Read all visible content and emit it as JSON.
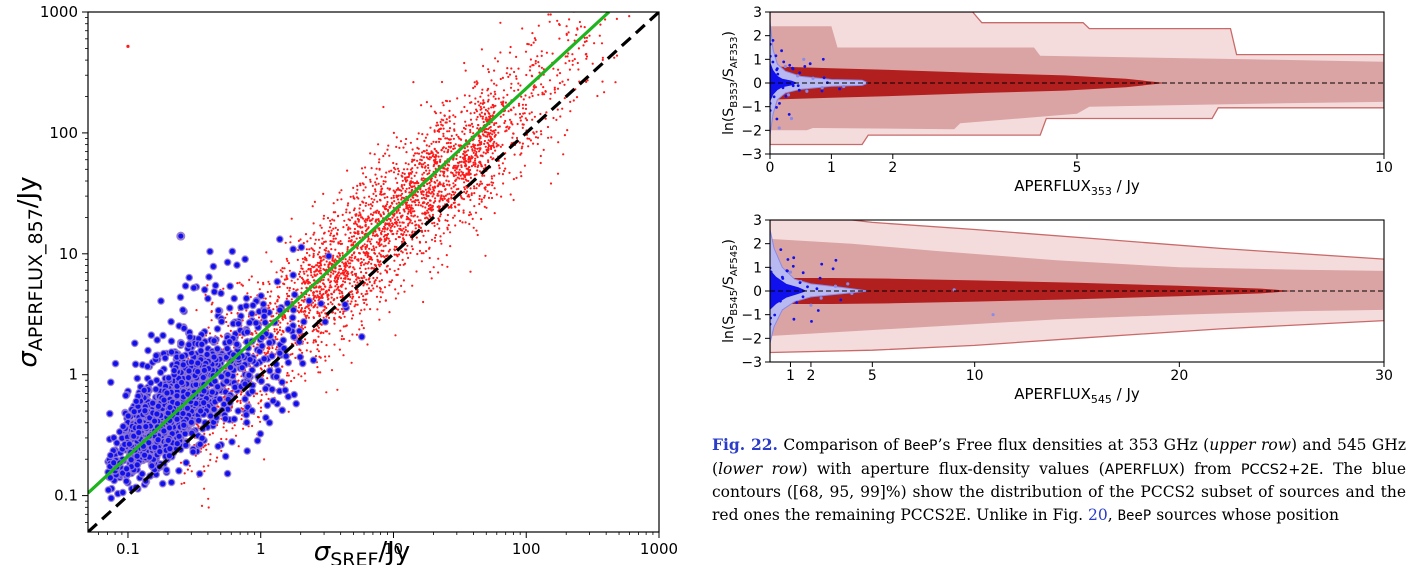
{
  "colors": {
    "pccs2": "#1010ee",
    "pccs2_halo": "#9a7fd0",
    "pccs2e": "#ff1a1a",
    "fit_line": "#1db41d",
    "identity_line": "#000000",
    "contour_dark": "#b21f1f",
    "contour_mid": "#dba4a4",
    "contour_light": "#f5dcdc",
    "contour_edge": "#c86a6a",
    "blue_contour": "#8a8aea"
  },
  "chart_data": [
    {
      "id": "scatter",
      "type": "scatter",
      "xlabel_main": "σ",
      "xlabel_sub": "SREF",
      "xlabel_tail": "/Jy",
      "ylabel_main": "σ",
      "ylabel_sub": "APERFLUX_857",
      "ylabel_tail": "/Jy",
      "xscale": "log",
      "yscale": "log",
      "xlim": [
        0.05,
        1000
      ],
      "ylim": [
        0.05,
        1000
      ],
      "xticks": [
        0.1,
        1,
        10,
        100,
        1000
      ],
      "xtick_labels": [
        "0.1",
        "1",
        "10",
        "100",
        "1000"
      ],
      "yticks": [
        0.1,
        1,
        10,
        100,
        1000
      ],
      "ytick_labels": [
        "0.1",
        "1",
        "10",
        "100",
        "1000"
      ],
      "series": [
        {
          "role": "pccs2e",
          "color": "#ff1a1a",
          "approx_points": 2600,
          "x_range": [
            0.25,
            700
          ],
          "log_slope": 1.0,
          "log_offset": 0.25,
          "log_scatter": 0.33
        },
        {
          "role": "pccs2",
          "color": "#1010ee",
          "approx_points": 1500,
          "center": [
            0.15,
            0.35
          ],
          "x_range": [
            0.07,
            8
          ]
        }
      ],
      "lines": [
        {
          "role": "fit",
          "color": "#1db41d",
          "points": [
            [
              0.05,
              0.105
            ],
            [
              420,
              1000
            ]
          ],
          "style": "solid"
        },
        {
          "role": "identity",
          "color": "#000000",
          "points": [
            [
              0.05,
              0.05
            ],
            [
              1000,
              1000
            ]
          ],
          "style": "dashed"
        }
      ],
      "outliers": [
        [
          0.1,
          520
        ],
        [
          0.25,
          14
        ]
      ]
    },
    {
      "id": "panel-353",
      "type": "area",
      "ylabel": "ln(S",
      "ylabel_sub1": "B353",
      "ylabel_mid": "/S",
      "ylabel_sub2": "AF353",
      "ylabel_end": ")",
      "xlabel": "APERFLUX",
      "xlabel_sub": "353",
      "xlabel_tail": " / Jy",
      "xlim": [
        0,
        10
      ],
      "ylim": [
        -3,
        3
      ],
      "xticks": [
        0,
        1,
        2,
        5,
        10
      ],
      "xtick_labels": [
        "0",
        "1",
        "2",
        "5",
        "10"
      ],
      "yticks": [
        -3,
        -2,
        -1,
        0,
        1,
        2,
        3
      ],
      "ytick_labels": [
        "−3",
        "−2",
        "−1",
        "0",
        "1",
        "2",
        "3"
      ],
      "bands": {
        "light": {
          "upper": [
            [
              0,
              3
            ],
            [
              1.5,
              3
            ],
            [
              3.3,
              3
            ],
            [
              3.45,
              2.55
            ],
            [
              3.45,
              2.55
            ],
            [
              5.1,
              2.55
            ],
            [
              5.2,
              2.3
            ],
            [
              7.5,
              2.3
            ],
            [
              7.6,
              1.2
            ],
            [
              10,
              1.2
            ]
          ],
          "lower": [
            [
              0,
              -2.6
            ],
            [
              1.5,
              -2.6
            ],
            [
              1.6,
              -2.2
            ],
            [
              4.4,
              -2.2
            ],
            [
              4.5,
              -1.5
            ],
            [
              7.2,
              -1.5
            ],
            [
              7.3,
              -1.05
            ],
            [
              10,
              -1.05
            ]
          ]
        },
        "mid": {
          "upper": [
            [
              0,
              2.4
            ],
            [
              1.0,
              2.4
            ],
            [
              1.1,
              1.5
            ],
            [
              4.3,
              1.5
            ],
            [
              4.4,
              1.15
            ],
            [
              7.8,
              1.0
            ],
            [
              10,
              0.9
            ]
          ],
          "lower": [
            [
              0,
              -2.0
            ],
            [
              0.6,
              -2.0
            ],
            [
              0.7,
              -1.9
            ],
            [
              3.0,
              -1.95
            ],
            [
              3.1,
              -1.7
            ],
            [
              5.0,
              -1.3
            ],
            [
              5.2,
              -1.0
            ],
            [
              8.5,
              -0.85
            ],
            [
              10,
              -0.8
            ]
          ]
        },
        "dark": {
          "upper": [
            [
              0,
              0.7
            ],
            [
              1.0,
              0.62
            ],
            [
              2.0,
              0.55
            ],
            [
              3.5,
              0.42
            ],
            [
              4.8,
              0.32
            ],
            [
              5.8,
              0.18
            ],
            [
              6.3,
              0.04
            ],
            [
              6.45,
              0
            ]
          ],
          "lower": [
            [
              0,
              -0.7
            ],
            [
              1.0,
              -0.62
            ],
            [
              2.0,
              -0.55
            ],
            [
              3.5,
              -0.42
            ],
            [
              4.8,
              -0.32
            ],
            [
              5.8,
              -0.18
            ],
            [
              6.3,
              -0.04
            ],
            [
              6.45,
              0
            ]
          ]
        },
        "blue_outer": {
          "upper": [
            [
              0,
              2.6
            ],
            [
              0.05,
              1.4
            ],
            [
              0.12,
              0.8
            ],
            [
              0.25,
              0.5
            ],
            [
              0.5,
              0.28
            ],
            [
              1.0,
              0.15
            ],
            [
              1.5,
              0.12
            ],
            [
              1.6,
              0
            ]
          ],
          "lower": [
            [
              0,
              -2.2
            ],
            [
              0.05,
              -1.3
            ],
            [
              0.12,
              -0.7
            ],
            [
              0.25,
              -0.42
            ],
            [
              0.5,
              -0.26
            ],
            [
              1.0,
              -0.14
            ],
            [
              1.5,
              -0.1
            ],
            [
              1.6,
              0
            ]
          ]
        },
        "blue_core": {
          "upper": [
            [
              0,
              0.9
            ],
            [
              0.05,
              0.55
            ],
            [
              0.12,
              0.3
            ],
            [
              0.2,
              0.18
            ],
            [
              0.35,
              0.1
            ],
            [
              0.45,
              0
            ]
          ],
          "lower": [
            [
              0,
              -0.8
            ],
            [
              0.05,
              -0.5
            ],
            [
              0.12,
              -0.3
            ],
            [
              0.2,
              -0.18
            ],
            [
              0.35,
              -0.1
            ],
            [
              0.45,
              0
            ]
          ]
        }
      },
      "scatter_points": [
        [
          0.3,
          -0.5
        ],
        [
          0.45,
          0.3
        ],
        [
          0.6,
          -0.35
        ],
        [
          0.7,
          0.2
        ],
        [
          0.85,
          -0.2
        ],
        [
          0.35,
          -1.5
        ],
        [
          0.55,
          1.0
        ],
        [
          1.2,
          -0.15
        ],
        [
          0.25,
          0.7
        ],
        [
          0.15,
          -1.9
        ]
      ]
    },
    {
      "id": "panel-545",
      "type": "area",
      "ylabel": "ln(S",
      "ylabel_sub1": "B545",
      "ylabel_mid": "/S",
      "ylabel_sub2": "AF545",
      "ylabel_end": ")",
      "xlabel": "APERFLUX",
      "xlabel_sub": "545",
      "xlabel_tail": " / Jy",
      "xlim": [
        0,
        30
      ],
      "ylim": [
        -3,
        3
      ],
      "xticks": [
        1,
        2,
        5,
        10,
        20,
        30
      ],
      "xtick_labels": [
        "1",
        "2",
        "5",
        "10",
        "20",
        "30"
      ],
      "yticks": [
        -3,
        -2,
        -1,
        0,
        1,
        2,
        3
      ],
      "ytick_labels": [
        "−3",
        "−2",
        "−1",
        "0",
        "1",
        "2",
        "3"
      ],
      "bands": {
        "light": {
          "upper": [
            [
              0,
              3
            ],
            [
              4,
              3
            ],
            [
              5,
              2.9
            ],
            [
              10,
              2.6
            ],
            [
              16,
              2.2
            ],
            [
              22,
              1.8
            ],
            [
              30,
              1.35
            ]
          ],
          "lower": [
            [
              0,
              -2.6
            ],
            [
              5,
              -2.5
            ],
            [
              10,
              -2.3
            ],
            [
              15,
              -2.0
            ],
            [
              22,
              -1.6
            ],
            [
              30,
              -1.25
            ]
          ]
        },
        "mid": {
          "upper": [
            [
              0,
              2.2
            ],
            [
              4,
              2.0
            ],
            [
              8,
              1.7
            ],
            [
              14,
              1.3
            ],
            [
              20,
              1.0
            ],
            [
              26,
              0.9
            ],
            [
              30,
              0.85
            ]
          ],
          "lower": [
            [
              0,
              -1.9
            ],
            [
              4,
              -1.7
            ],
            [
              8,
              -1.5
            ],
            [
              14,
              -1.2
            ],
            [
              20,
              -1.0
            ],
            [
              26,
              -0.85
            ],
            [
              30,
              -0.8
            ]
          ]
        },
        "dark": {
          "upper": [
            [
              0,
              0.55
            ],
            [
              3,
              0.55
            ],
            [
              6,
              0.52
            ],
            [
              10,
              0.45
            ],
            [
              15,
              0.35
            ],
            [
              20,
              0.22
            ],
            [
              24,
              0.1
            ],
            [
              25.5,
              0
            ]
          ],
          "lower": [
            [
              0,
              -0.55
            ],
            [
              3,
              -0.55
            ],
            [
              6,
              -0.52
            ],
            [
              10,
              -0.45
            ],
            [
              15,
              -0.35
            ],
            [
              20,
              -0.22
            ],
            [
              24,
              -0.1
            ],
            [
              25.5,
              0
            ]
          ]
        },
        "blue_outer": {
          "upper": [
            [
              0,
              2.6
            ],
            [
              0.2,
              1.8
            ],
            [
              0.6,
              1.0
            ],
            [
              1.2,
              0.5
            ],
            [
              2.0,
              0.3
            ],
            [
              3.5,
              0.15
            ],
            [
              4.8,
              0
            ]
          ],
          "lower": [
            [
              0,
              -2.2
            ],
            [
              0.2,
              -1.5
            ],
            [
              0.6,
              -0.8
            ],
            [
              1.2,
              -0.45
            ],
            [
              2.0,
              -0.25
            ],
            [
              3.5,
              -0.12
            ],
            [
              4.8,
              0
            ]
          ]
        },
        "blue_core": {
          "upper": [
            [
              0,
              0.9
            ],
            [
              0.3,
              0.6
            ],
            [
              0.8,
              0.3
            ],
            [
              1.4,
              0.15
            ],
            [
              1.8,
              0
            ]
          ],
          "lower": [
            [
              0,
              -0.8
            ],
            [
              0.3,
              -0.55
            ],
            [
              0.8,
              -0.28
            ],
            [
              1.4,
              -0.12
            ],
            [
              1.8,
              0
            ]
          ]
        }
      },
      "scatter_points": [
        [
          1.5,
          0.4
        ],
        [
          2.5,
          -0.3
        ],
        [
          3.2,
          0.2
        ],
        [
          4.0,
          -0.1
        ],
        [
          10.9,
          -1.0
        ],
        [
          9.0,
          0.05
        ],
        [
          2.0,
          -0.6
        ],
        [
          1.0,
          0.8
        ],
        [
          3.8,
          0.3
        ]
      ]
    }
  ],
  "caption": {
    "label": "Fig. 22.",
    "t1": " Comparison of ",
    "beep1": "BeeP",
    "t2": "’s Free flux densities at 353 GHz (",
    "upper_row": "upper row",
    "t3": ") and 545 GHz (",
    "lower_row": "lower row",
    "t4": ") with aperture flux-density values (",
    "aperflux": "APERFLUX",
    "t5": ") from ",
    "pccs": "PCCS2+2E",
    "t6": ". The blue contours ([68, 95, 99]%) show the distribution of the PCCS2 subset of sources and the red ones the remaining PCCS2E. Unlike in Fig. ",
    "fig_ref": "20",
    "t7": ", ",
    "beep2": "BeeP",
    "t8": " sources whose position"
  }
}
